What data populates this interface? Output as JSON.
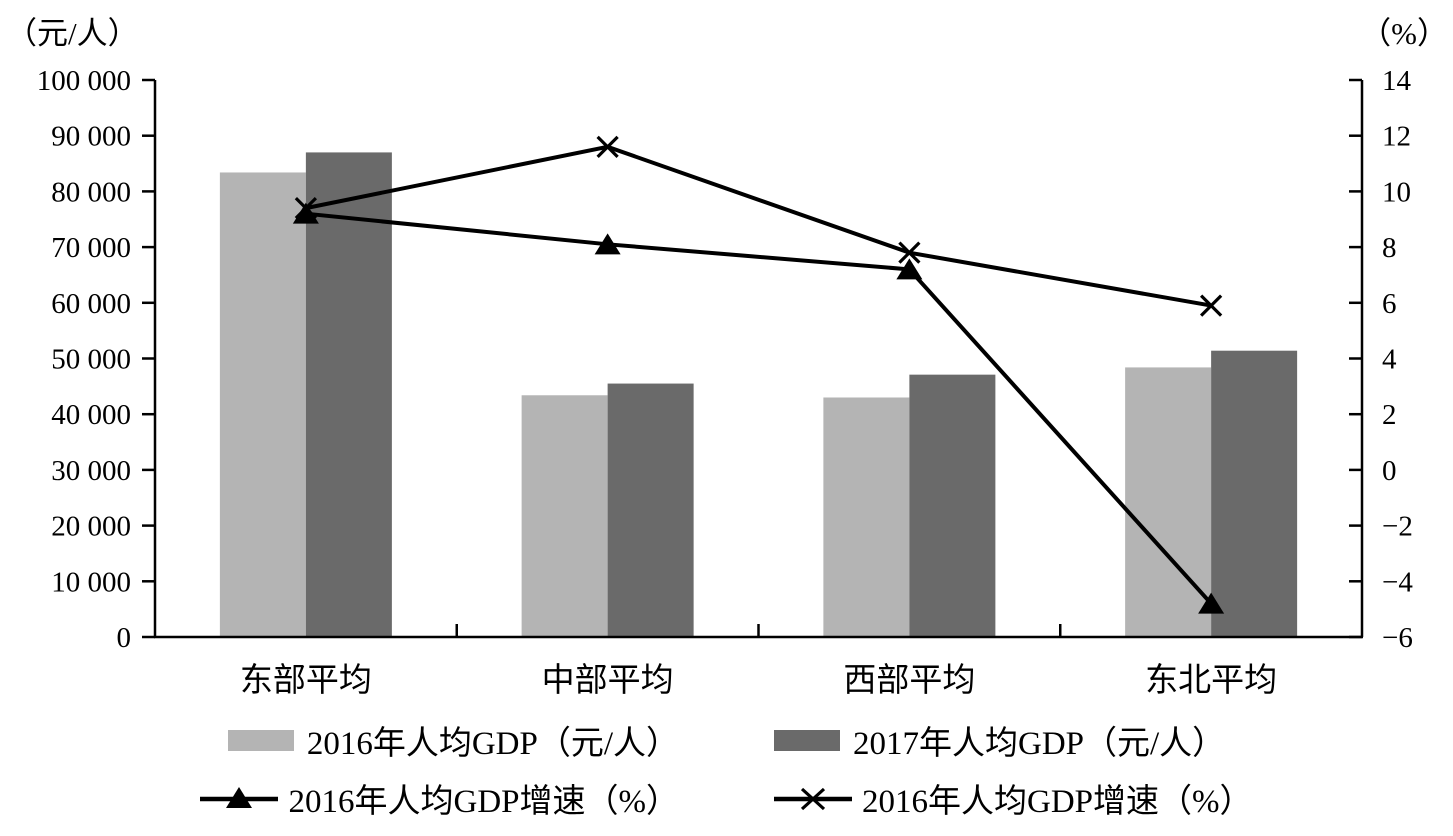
{
  "units": {
    "left": "（元/人）",
    "right": "（%）"
  },
  "chart_data": {
    "type": "combo_bar_line",
    "title": "",
    "categories": [
      "东部平均",
      "中部平均",
      "西部平均",
      "东北平均"
    ],
    "bar_series": [
      {
        "name": "2016年人均GDP（元/人）",
        "color": "#b4b4b4",
        "axis": "left",
        "values": [
          83400,
          43400,
          43000,
          48400
        ]
      },
      {
        "name": "2017年人均GDP（元/人）",
        "color": "#6a6a6a",
        "axis": "left",
        "values": [
          87000,
          45500,
          47100,
          51400
        ]
      }
    ],
    "line_series": [
      {
        "name": "2016年人均GDP增速（%）",
        "marker": "triangle",
        "color": "#000000",
        "axis": "right",
        "values": [
          9.2,
          8.1,
          7.2,
          -4.8
        ]
      },
      {
        "name": "2016年人均GDP增速（%）",
        "marker": "x",
        "color": "#000000",
        "axis": "right",
        "values": [
          9.4,
          11.6,
          7.8,
          5.9
        ]
      }
    ],
    "left_axis": {
      "label": "（元/人）",
      "min": 0,
      "max": 100000,
      "step": 10000,
      "tick_values": [
        0,
        10000,
        20000,
        30000,
        40000,
        50000,
        60000,
        70000,
        80000,
        90000,
        100000
      ],
      "tick_labels": [
        "0",
        "10 000",
        "20 000",
        "30 000",
        "40 000",
        "50 000",
        "60 000",
        "70 000",
        "80 000",
        "90 000",
        "100 000"
      ]
    },
    "right_axis": {
      "label": "（%）",
      "min": -6,
      "max": 14,
      "step": 2,
      "tick_values": [
        -6,
        -4,
        -2,
        0,
        2,
        4,
        6,
        8,
        10,
        12,
        14
      ],
      "tick_labels": [
        "−6",
        "−4",
        "−2",
        "0",
        "2",
        "4",
        "6",
        "8",
        "10",
        "12",
        "14"
      ]
    },
    "grid": false,
    "legend_position": "bottom"
  }
}
